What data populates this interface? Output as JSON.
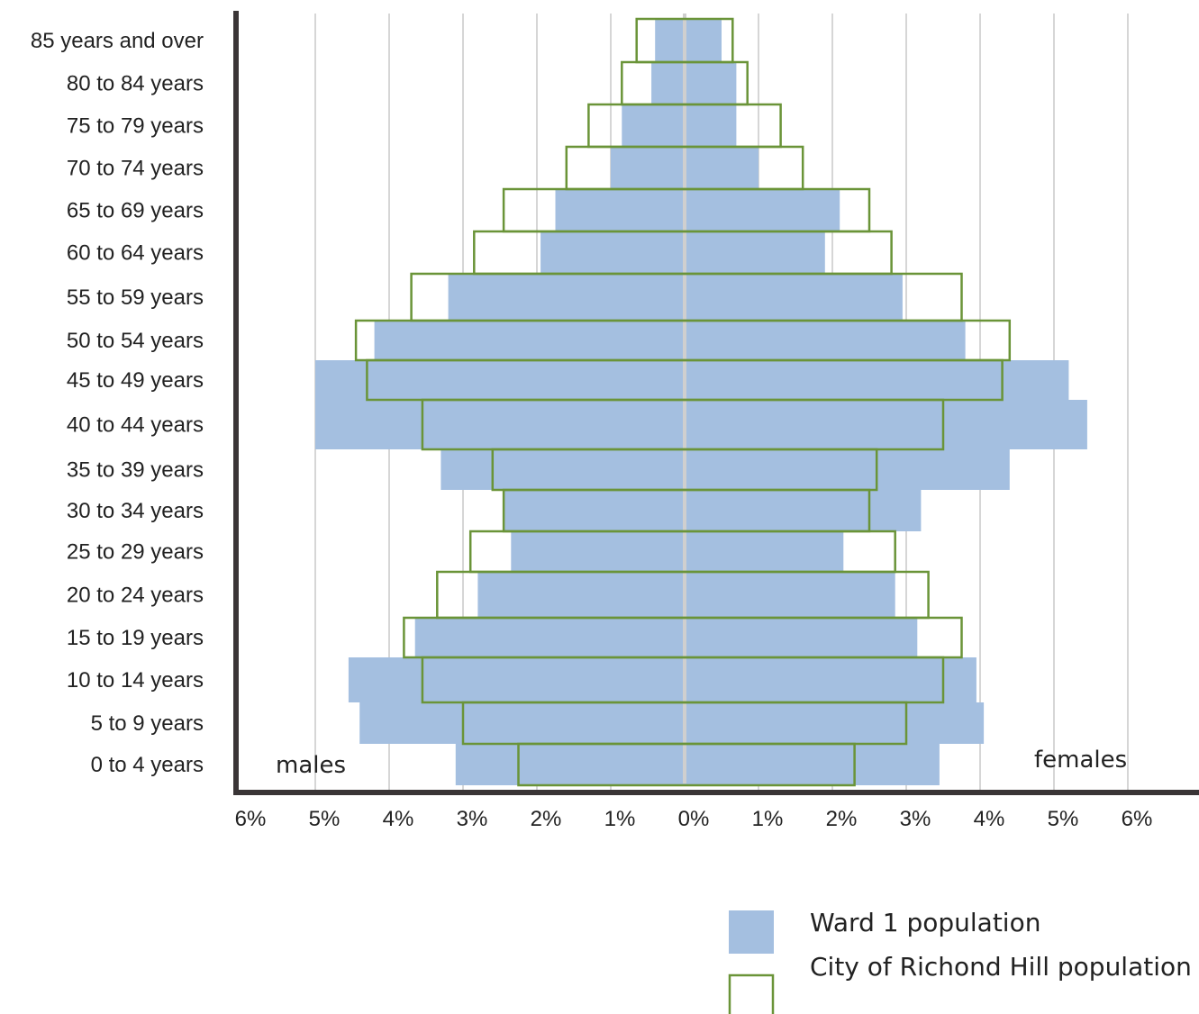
{
  "chart_data": {
    "type": "bar",
    "subtype": "population-pyramid",
    "orientation": "horizontal",
    "title": "",
    "xlabel": "",
    "ylabel": "",
    "x_ticks": [
      "6%",
      "5%",
      "4%",
      "3%",
      "2%",
      "1%",
      "0%",
      "1%",
      "2%",
      "3%",
      "4%",
      "5%",
      "6%"
    ],
    "xlim": [
      -6,
      6
    ],
    "grid": true,
    "side_labels": {
      "left": "males",
      "right": "females"
    },
    "categories": [
      "85 years and over",
      "80 to 84 years",
      "75 to 79 years",
      "70 to 74 years",
      "65 to 69 years",
      "60 to 64 years",
      "55 to 59 years",
      "50 to 54 years",
      "45 to 49 years",
      "40 to 44 years",
      "35 to 39 years",
      "30 to 34 years",
      "25 to 29 years",
      "20 to 24 years",
      "15 to 19 years",
      "10 to 14 years",
      "5 to 9 years",
      "0 to 4 years"
    ],
    "series": [
      {
        "name": "Ward 1 population",
        "style": "filled",
        "color": "#a4bfe0",
        "males": [
          0.4,
          0.45,
          0.85,
          1.0,
          1.75,
          1.95,
          3.2,
          4.2,
          5.0,
          5.0,
          3.3,
          2.45,
          2.35,
          2.8,
          3.65,
          4.55,
          4.4,
          3.1
        ],
        "females": [
          0.5,
          0.7,
          0.7,
          1.0,
          2.1,
          1.9,
          2.95,
          3.8,
          5.2,
          5.45,
          4.4,
          3.2,
          2.15,
          2.85,
          3.15,
          3.95,
          4.05,
          3.45
        ]
      },
      {
        "name": "City of Richond Hill population",
        "style": "outline",
        "color": "#6a9438",
        "males": [
          0.65,
          0.85,
          1.3,
          1.6,
          2.45,
          2.85,
          3.7,
          4.45,
          4.3,
          3.55,
          2.6,
          2.45,
          2.9,
          3.35,
          3.8,
          3.55,
          3.0,
          2.25
        ],
        "females": [
          0.65,
          0.85,
          1.3,
          1.6,
          2.5,
          2.8,
          3.75,
          4.4,
          4.3,
          3.5,
          2.6,
          2.5,
          2.85,
          3.3,
          3.75,
          3.5,
          3.0,
          2.3
        ]
      }
    ],
    "legend_position": "bottom-right"
  },
  "colors": {
    "axis": "#3a3536",
    "grid": "#d6d6d6",
    "center_line": "#cfcfcf"
  }
}
